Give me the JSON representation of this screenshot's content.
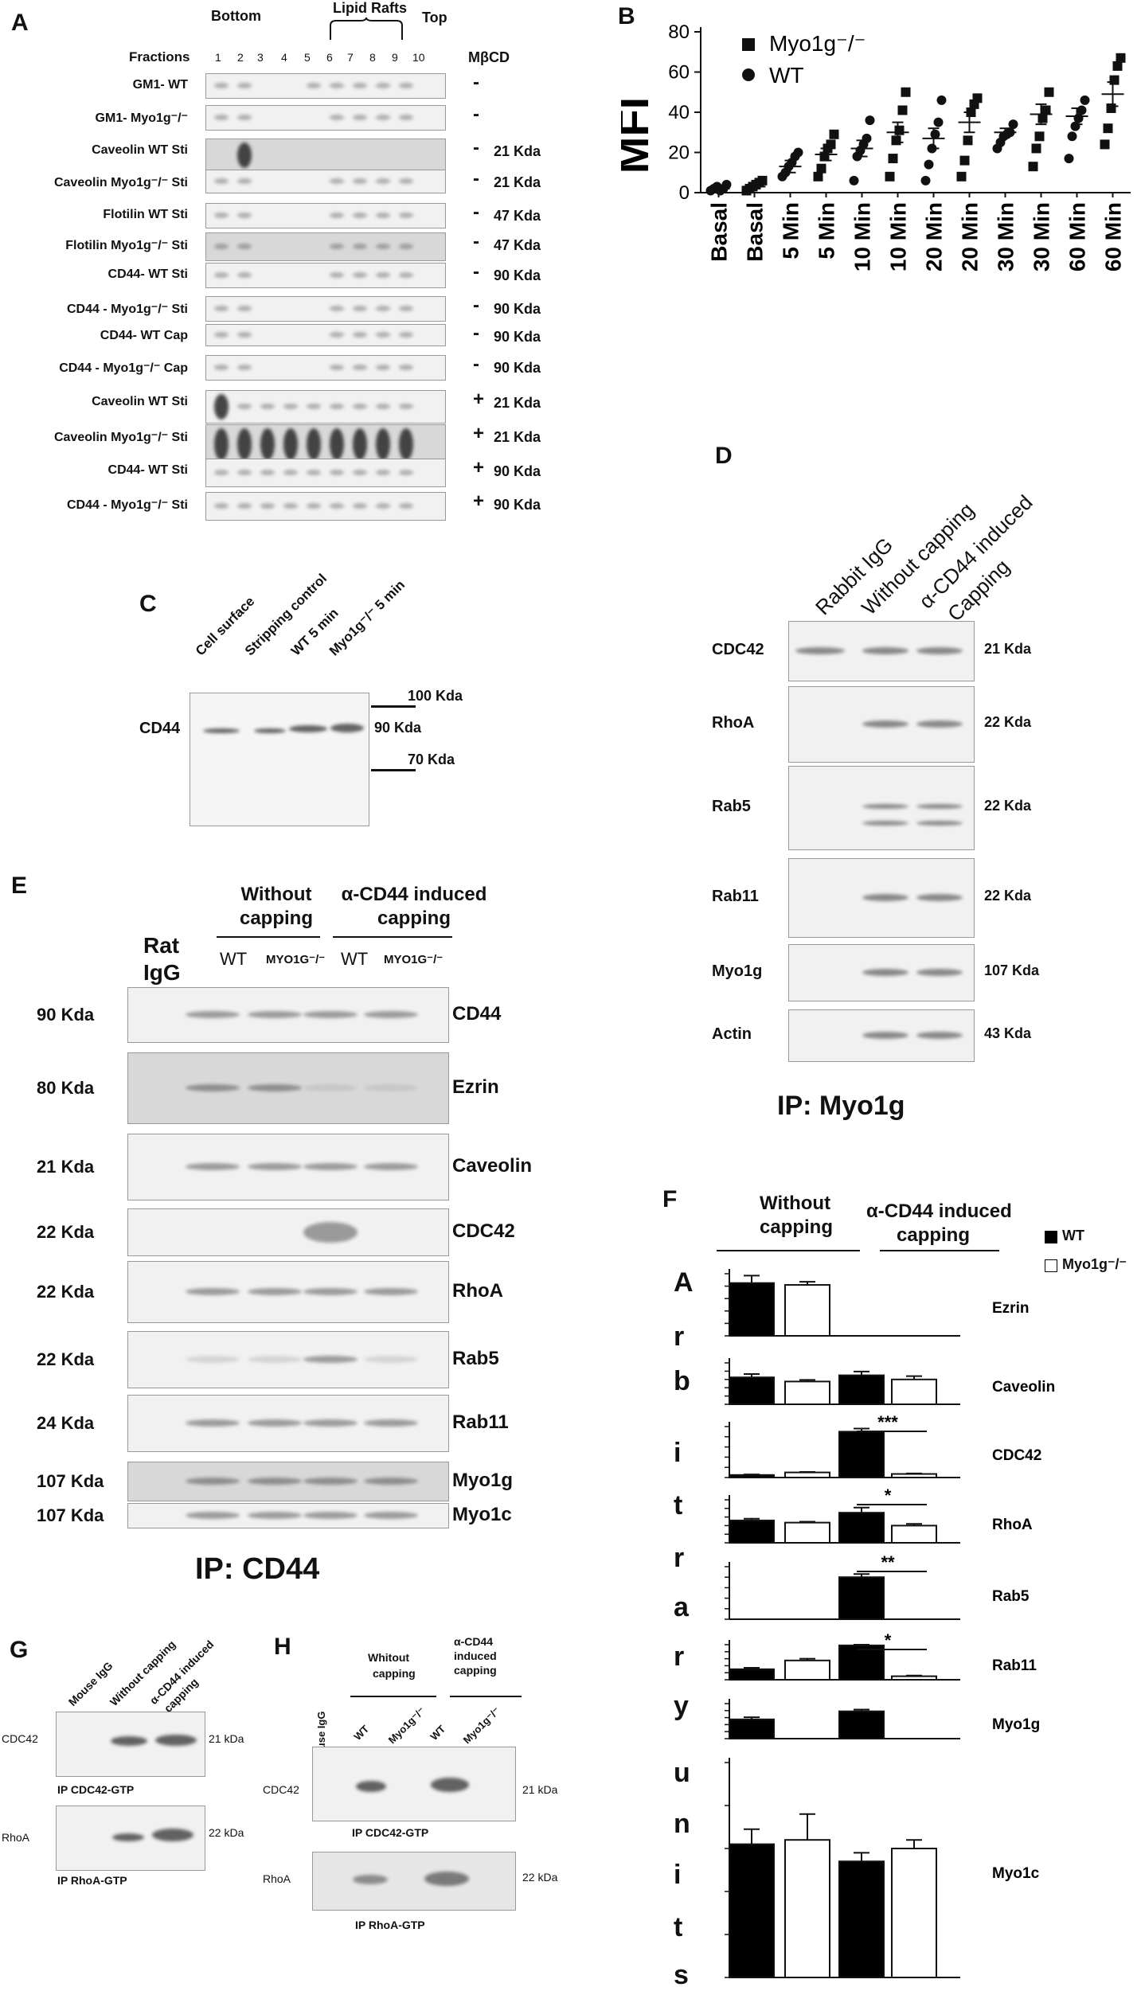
{
  "panelA": {
    "letter": "A",
    "bottom": "Bottom",
    "top": "Top",
    "lipid_rafts": "Lipid Rafts",
    "fractions_label": "Fractions",
    "fractions": [
      "1",
      "2",
      "3",
      "4",
      "5",
      "6",
      "7",
      "8",
      "9",
      "10"
    ],
    "mbcd": "MβCD",
    "rows": [
      {
        "label": "GM1- WT",
        "sign": "-",
        "kda": ""
      },
      {
        "label": "GM1- Myo1g⁻/⁻",
        "sign": "-",
        "kda": ""
      },
      {
        "label": "Caveolin WT Sti",
        "sign": "-",
        "kda": "21 Kda"
      },
      {
        "label": "Caveolin Myo1g⁻/⁻ Sti",
        "sign": "-",
        "kda": "21 Kda"
      },
      {
        "label": "Flotilin WT Sti",
        "sign": "-",
        "kda": "47 Kda"
      },
      {
        "label": "Flotilin Myo1g⁻/⁻ Sti",
        "sign": "-",
        "kda": "47 Kda"
      },
      {
        "label": "CD44- WT Sti",
        "sign": "-",
        "kda": "90 Kda"
      },
      {
        "label": "CD44 - Myo1g⁻/⁻ Sti",
        "sign": "-",
        "kda": "90 Kda"
      },
      {
        "label": "CD44- WT Cap",
        "sign": "-",
        "kda": "90 Kda"
      },
      {
        "label": "CD44 - Myo1g⁻/⁻ Cap",
        "sign": "-",
        "kda": "90 Kda"
      },
      {
        "label": "Caveolin WT Sti",
        "sign": "+",
        "kda": "21 Kda"
      },
      {
        "label": "Caveolin Myo1g⁻/⁻ Sti",
        "sign": "+",
        "kda": "21 Kda"
      },
      {
        "label": "CD44- WT Sti",
        "sign": "+",
        "kda": "90 Kda"
      },
      {
        "label": "CD44 - Myo1g⁻/⁻ Sti",
        "sign": "+",
        "kda": "90 Kda"
      }
    ]
  },
  "panelB": {
    "letter": "B",
    "ylabel": "MFI",
    "legend": [
      "Myo1g⁻/⁻",
      "WT"
    ],
    "categories": [
      "Basal",
      "Basal",
      "5 Min",
      "5 Min",
      "10 Min",
      "10 Min",
      "20 Min",
      "20 Min",
      "30 Min",
      "30 Min",
      "60 Min",
      "60 Min"
    ],
    "yticks": [
      "0",
      "20",
      "40",
      "60",
      "80"
    ]
  },
  "panelC": {
    "letter": "C",
    "lanes": [
      "Cell surface",
      "Stripping control",
      "WT 5 min",
      "Myo1g⁻/⁻ 5 min"
    ],
    "row": "CD44",
    "markers": [
      "100 Kda",
      "90 Kda",
      "70 Kda"
    ]
  },
  "panelD": {
    "letter": "D",
    "lanes": [
      "Rabbit IgG",
      "Without capping",
      "α-CD44 induced",
      "Capping"
    ],
    "rows": [
      {
        "label": "CDC42",
        "kda": "21 Kda"
      },
      {
        "label": "RhoA",
        "kda": "22 Kda"
      },
      {
        "label": "Rab5",
        "kda": "22 Kda"
      },
      {
        "label": "Rab11",
        "kda": "22 Kda"
      },
      {
        "label": "Myo1g",
        "kda": "107 Kda"
      },
      {
        "label": "Actin",
        "kda": "43 Kda"
      }
    ],
    "footer": "IP: Myo1g"
  },
  "panelE": {
    "letter": "E",
    "header_without": [
      "Without",
      "capping"
    ],
    "header_with": [
      "α-CD44 induced",
      "capping"
    ],
    "rat_igg": [
      "Rat",
      "IgG"
    ],
    "lanes": [
      "WT",
      "MYO1G⁻/⁻",
      "WT",
      "MYO1G⁻/⁻"
    ],
    "rows": [
      {
        "kda": "90 Kda",
        "label": "CD44"
      },
      {
        "kda": "80 Kda",
        "label": "Ezrin"
      },
      {
        "kda": "21 Kda",
        "label": "Caveolin"
      },
      {
        "kda": "22 Kda",
        "label": "CDC42"
      },
      {
        "kda": "22 Kda",
        "label": "RhoA"
      },
      {
        "kda": "22 Kda",
        "label": "Rab5"
      },
      {
        "kda": "24 Kda",
        "label": "Rab11"
      },
      {
        "kda": "107 Kda",
        "label": "Myo1g"
      },
      {
        "kda": "107 Kda",
        "label": "Myo1c"
      }
    ],
    "footer": "IP: CD44"
  },
  "panelF": {
    "letter": "F",
    "header_without": [
      "Without",
      "capping"
    ],
    "header_with": [
      "α-CD44 induced",
      "capping"
    ],
    "legend": [
      "WT",
      "Myo1g⁻/⁻"
    ],
    "ylabel_letters": [
      "A",
      "r",
      "b",
      "i",
      "t",
      "r",
      "a",
      "r",
      "y",
      "u",
      "n",
      "i",
      "t",
      "s"
    ],
    "colors": {
      "wt": "#000000",
      "ko": "#ffffff"
    }
  },
  "chart_data": [
    {
      "type": "scatter",
      "panel": "B",
      "ylabel": "MFI",
      "ylim": [
        0,
        80
      ],
      "categories": [
        "Basal",
        "Basal",
        "5 Min",
        "5 Min",
        "10 Min",
        "10 Min",
        "20 Min",
        "20 Min",
        "30 Min",
        "30 Min",
        "60 Min",
        "60 Min"
      ],
      "series": [
        {
          "name": "WT",
          "marker": "circle",
          "groups": [
            0,
            2,
            4,
            6,
            8,
            10
          ],
          "points": [
            [
              1,
              2,
              3,
              1,
              2,
              4
            ],
            [
              8,
              10,
              13,
              15,
              18,
              20
            ],
            [
              6,
              18,
              21,
              24,
              27,
              36
            ],
            [
              6,
              14,
              22,
              29,
              35,
              46
            ],
            [
              22,
              25,
              28,
              29,
              30,
              34
            ],
            [
              17,
              28,
              33,
              37,
              41,
              46
            ]
          ],
          "mean": [
            2,
            13,
            22,
            27,
            30,
            38
          ],
          "sem": [
            0.6,
            3,
            4,
            5,
            2,
            4
          ]
        },
        {
          "name": "Myo1g⁻/⁻",
          "marker": "square",
          "groups": [
            1,
            3,
            5,
            7,
            9,
            11
          ],
          "points": [
            [
              1,
              2,
              3,
              4,
              5,
              6
            ],
            [
              8,
              12,
              18,
              22,
              24,
              29
            ],
            [
              8,
              17,
              26,
              31,
              41,
              50
            ],
            [
              8,
              16,
              26,
              40,
              44,
              47
            ],
            [
              13,
              22,
              28,
              37,
              41,
              50
            ],
            [
              24,
              32,
              42,
              56,
              63,
              67
            ]
          ],
          "mean": [
            3,
            19,
            30,
            35,
            39,
            49
          ],
          "sem": [
            1,
            3,
            5,
            5,
            5,
            6
          ]
        }
      ]
    },
    {
      "type": "bar",
      "panel": "F",
      "categories": [
        "WT without capping",
        "Myo1g⁻/⁻ without capping",
        "WT α-CD44 capping",
        "Myo1g⁻/⁻ α-CD44 capping"
      ],
      "series": [
        {
          "name": "Ezrin",
          "values": [
            0.85,
            0.82,
            0,
            0
          ],
          "err": [
            0.12,
            0.05,
            0,
            0
          ],
          "sig": ""
        },
        {
          "name": "Caveolin",
          "values": [
            0.65,
            0.55,
            0.7,
            0.6
          ],
          "err": [
            0.08,
            0.04,
            0.09,
            0.08
          ],
          "sig": ""
        },
        {
          "name": "CDC42",
          "values": [
            0.05,
            0.1,
            0.9,
            0.07
          ],
          "err": [
            0.01,
            0.01,
            0.06,
            0.01
          ],
          "sig": "***"
        },
        {
          "name": "RhoA",
          "values": [
            0.52,
            0.47,
            0.7,
            0.4
          ],
          "err": [
            0.04,
            0.02,
            0.12,
            0.04
          ],
          "sig": "*"
        },
        {
          "name": "Rab5",
          "values": [
            0,
            0,
            0.8,
            0
          ],
          "err": [
            0,
            0,
            0.06,
            0
          ],
          "sig": "**"
        },
        {
          "name": "Rab11",
          "values": [
            0.3,
            0.55,
            0.98,
            0.1
          ],
          "err": [
            0.04,
            0.05,
            0.02,
            0.02
          ],
          "sig": "*"
        },
        {
          "name": "Myo1g",
          "values": [
            0.55,
            0,
            0.78,
            0
          ],
          "err": [
            0.06,
            0,
            0.05,
            0
          ],
          "sig": ""
        },
        {
          "name": "Myo1c",
          "values": [
            0.62,
            0.64,
            0.54,
            0.6
          ],
          "err": [
            0.07,
            0.12,
            0.04,
            0.04
          ],
          "sig": ""
        }
      ]
    }
  ],
  "panelG": {
    "letter": "G",
    "lanes": [
      "Mouse IgG",
      "Without capping",
      "α-CD44 induced",
      "capping"
    ],
    "rows": [
      {
        "label": "CDC42",
        "kda": "21 kDa",
        "ip": "IP CDC42-GTP"
      },
      {
        "label": "RhoA",
        "kda": "22 kDa",
        "ip": "IP RhoA-GTP"
      }
    ]
  },
  "panelH": {
    "letter": "H",
    "header_without": [
      "Whitout",
      "capping"
    ],
    "header_with": [
      "α-CD44",
      "induced",
      "capping"
    ],
    "mouse_igg": "Mouse IgG",
    "lanes": [
      "WT",
      "Myo1g⁻/⁻",
      "WT",
      "Myo1g⁻/⁻"
    ],
    "rows": [
      {
        "label": "CDC42",
        "kda": "21 kDa",
        "ip": "IP CDC42-GTP"
      },
      {
        "label": "RhoA",
        "kda": "22 kDa",
        "ip": "IP RhoA-GTP"
      }
    ]
  }
}
